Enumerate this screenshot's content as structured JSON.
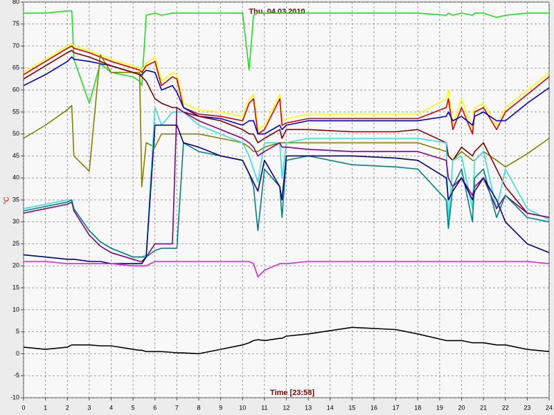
{
  "chart_data": {
    "type": "line",
    "title": "Thu, 04.03.2010",
    "x_label": "Time [23:58]",
    "y_label": "°C",
    "x": [
      0,
      1,
      2,
      2.2,
      2.3,
      3,
      3.5,
      4,
      5,
      5.3,
      5.4,
      5.6,
      6,
      6.3,
      6.8,
      7,
      7.3,
      8,
      9,
      10,
      10.3,
      10.5,
      10.7,
      11,
      11.7,
      11.8,
      12,
      13,
      15,
      17,
      18,
      19.3,
      19.4,
      19.6,
      20,
      20.5,
      20.6,
      21,
      21.6,
      22,
      23,
      24
    ],
    "series": [
      {
        "color": "#22dd22",
        "values": [
          77.5,
          77.5,
          78,
          78,
          67,
          57,
          66,
          64,
          63,
          62,
          61,
          77,
          77.5,
          77,
          77.5,
          77.5,
          77.5,
          77.5,
          77.5,
          77.5,
          64.5,
          77,
          77.5,
          77.5,
          77.5,
          77.5,
          77.5,
          77.5,
          77.5,
          77.5,
          77.5,
          77,
          77.5,
          77,
          77.5,
          77,
          77.5,
          77.5,
          76.5,
          77,
          77.5,
          77.5
        ]
      },
      {
        "color": "#ffff00",
        "values": [
          64,
          67,
          70,
          70.5,
          70,
          69,
          68,
          67,
          65.5,
          65,
          64.5,
          66,
          67.5,
          62,
          64,
          63.5,
          57,
          55.5,
          55,
          54,
          58,
          59,
          51,
          52,
          59,
          53,
          53.5,
          54.5,
          54.5,
          54.5,
          54.5,
          58,
          60,
          52,
          58,
          51,
          56,
          57,
          52,
          56,
          60,
          64
        ]
      },
      {
        "color": "#dd0000",
        "values": [
          63.5,
          66.5,
          69.5,
          70,
          69.5,
          68.5,
          67.5,
          66.5,
          65,
          64.5,
          64,
          65.5,
          66.5,
          61,
          63,
          62.5,
          56,
          54.5,
          54,
          53,
          57,
          58,
          50,
          51,
          58,
          52,
          52.5,
          53.5,
          53.5,
          53.5,
          53.5,
          56,
          58,
          51,
          56,
          50,
          55,
          56,
          51,
          55,
          59,
          63
        ]
      },
      {
        "color": "#0000cc",
        "values": [
          61,
          63.5,
          66.5,
          67.5,
          67,
          66.5,
          66,
          65.5,
          64,
          63.5,
          63.5,
          64.5,
          64,
          60,
          61,
          59.5,
          56,
          54,
          53.5,
          52,
          53,
          53,
          50,
          50,
          52,
          51,
          52,
          53,
          53,
          53,
          53,
          54,
          55,
          53,
          54,
          52,
          54,
          55,
          53,
          53,
          57,
          60.5
        ]
      },
      {
        "color": "#808000",
        "values": [
          49,
          52,
          55.5,
          56.5,
          45,
          41.5,
          68,
          64,
          64,
          64,
          38,
          48,
          47,
          50,
          50,
          50,
          50,
          50,
          49,
          48,
          47,
          46,
          46,
          47,
          48,
          48,
          48,
          48,
          48,
          48,
          48,
          46,
          45,
          44,
          46,
          44,
          44,
          46,
          44,
          42.5,
          45.5,
          49
        ]
      },
      {
        "color": "#800000",
        "values": [
          62.5,
          65.5,
          68.5,
          69,
          68.5,
          67.5,
          66.5,
          65.5,
          64,
          63.5,
          63,
          62,
          58,
          57,
          56,
          56,
          55,
          54,
          53,
          51,
          50,
          50,
          48,
          49,
          51,
          49,
          51,
          51,
          50.5,
          50.5,
          51,
          48,
          45,
          44,
          47,
          45,
          46,
          48,
          42,
          38,
          32,
          31
        ]
      },
      {
        "color": "#33e0e0",
        "values": [
          33,
          34,
          35,
          35,
          33,
          28,
          25.5,
          24,
          22,
          22,
          22,
          22.5,
          56,
          52,
          55,
          55,
          55,
          52,
          50,
          48,
          45,
          42,
          39,
          48,
          48,
          40,
          48,
          49,
          49,
          49,
          49,
          48,
          30,
          44,
          45,
          33,
          44,
          46,
          33,
          42,
          33,
          30.5
        ]
      },
      {
        "color": "#800080",
        "values": [
          32,
          33,
          34,
          34.5,
          32.5,
          27,
          24.5,
          23,
          21.5,
          21,
          21,
          22,
          25,
          25,
          25,
          56,
          55,
          53,
          51,
          49,
          48,
          47,
          45,
          46,
          48,
          47,
          47,
          46.5,
          46,
          46,
          46,
          44,
          40,
          38,
          40,
          36,
          38,
          40,
          33,
          36,
          32,
          31
        ]
      },
      {
        "color": "#008080",
        "values": [
          32.5,
          33.5,
          34.5,
          35,
          33,
          28,
          25.5,
          24,
          22,
          22,
          22,
          22,
          23.5,
          24,
          24,
          24,
          48,
          46,
          45,
          44,
          41,
          38,
          28,
          42,
          38,
          31,
          44,
          45,
          43,
          42.5,
          42,
          35,
          28.5,
          38,
          42,
          30,
          40,
          42,
          31,
          36,
          31,
          30
        ]
      },
      {
        "color": "#000080",
        "values": [
          22.5,
          22,
          21.5,
          21.5,
          21.5,
          21,
          21,
          20.5,
          20.5,
          20.5,
          20.5,
          22,
          52,
          52,
          52,
          52,
          48,
          47,
          45,
          44,
          41,
          39,
          37,
          44,
          38,
          35,
          45,
          45,
          45,
          44.5,
          44,
          40,
          35,
          37,
          40,
          35,
          37,
          40,
          35,
          30,
          25,
          23
        ]
      },
      {
        "color": "#dd22dd",
        "values": [
          21,
          21,
          20.5,
          20.5,
          20.5,
          20.5,
          20.5,
          20.5,
          20,
          20,
          20,
          20,
          21,
          21,
          21,
          21,
          21,
          21,
          21,
          21,
          21,
          20.5,
          17.5,
          19,
          20.5,
          20.5,
          20.5,
          21,
          21,
          21,
          21,
          21,
          21,
          21,
          21,
          21,
          21,
          21,
          21,
          21,
          21,
          20.5
        ]
      },
      {
        "color": "#000000",
        "values": [
          1.5,
          1,
          1.5,
          2,
          2,
          2,
          1.8,
          1.8,
          1,
          0.8,
          0.8,
          0.5,
          0.5,
          0.5,
          0.3,
          0.2,
          0.2,
          0,
          1,
          2,
          2.5,
          3,
          3.2,
          3,
          3.5,
          3.5,
          4,
          4.5,
          6,
          5.5,
          4.5,
          3,
          3,
          3,
          3,
          2.5,
          2.5,
          2.5,
          2,
          2,
          1,
          0.5
        ]
      }
    ],
    "xlim": [
      0,
      24
    ],
    "xticks": [
      0,
      1,
      2,
      3,
      4,
      5,
      6,
      7,
      8,
      9,
      10,
      11,
      12,
      13,
      14,
      15,
      16,
      17,
      18,
      19,
      20,
      21,
      22,
      23,
      24
    ],
    "ylim": [
      -10,
      80
    ],
    "yticks": [
      -10,
      -5,
      0,
      5,
      10,
      15,
      20,
      25,
      30,
      35,
      40,
      45,
      50,
      55,
      60,
      65,
      70,
      75,
      80
    ],
    "grid": true
  }
}
